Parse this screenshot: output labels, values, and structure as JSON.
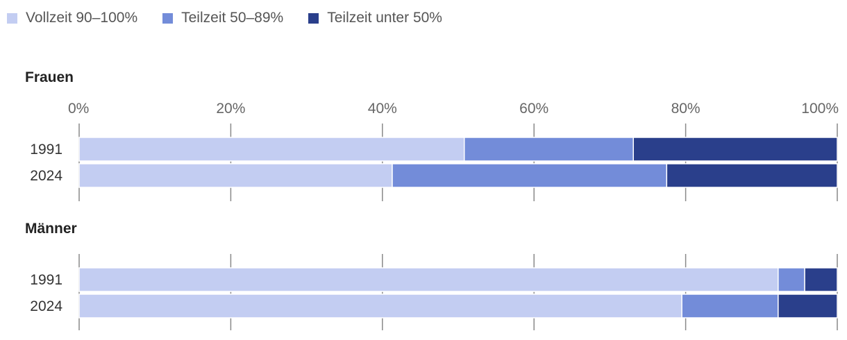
{
  "chart_data": {
    "type": "bar",
    "orientation": "horizontal",
    "stacked": true,
    "legend_placement": "top-left",
    "xlim": [
      0,
      100
    ],
    "ticks": [
      0,
      20,
      40,
      60,
      80,
      100
    ],
    "tick_labels": [
      "0%",
      "20%",
      "40%",
      "60%",
      "80%",
      "100%"
    ],
    "categories": [
      "1991",
      "2024"
    ],
    "colors": [
      "#c3cdf2",
      "#738cd9",
      "#2a3f8b"
    ],
    "legend": [
      "Vollzeit 90–100%",
      "Teilzeit 50–89%",
      "Teilzeit unter 50%"
    ],
    "groups": [
      {
        "title": "Frauen",
        "series": [
          {
            "name": "Vollzeit 90–100%",
            "values": [
              50.8,
              41.3
            ]
          },
          {
            "name": "Teilzeit 50–89%",
            "values": [
              22.3,
              36.2
            ]
          },
          {
            "name": "Teilzeit unter 50%",
            "values": [
              26.9,
              22.5
            ]
          }
        ]
      },
      {
        "title": "Männer",
        "series": [
          {
            "name": "Vollzeit 90–100%",
            "values": [
              92.2,
              79.5
            ]
          },
          {
            "name": "Teilzeit 50–89%",
            "values": [
              3.5,
              12.7
            ]
          },
          {
            "name": "Teilzeit unter 50%",
            "values": [
              4.3,
              7.8
            ]
          }
        ]
      }
    ]
  }
}
